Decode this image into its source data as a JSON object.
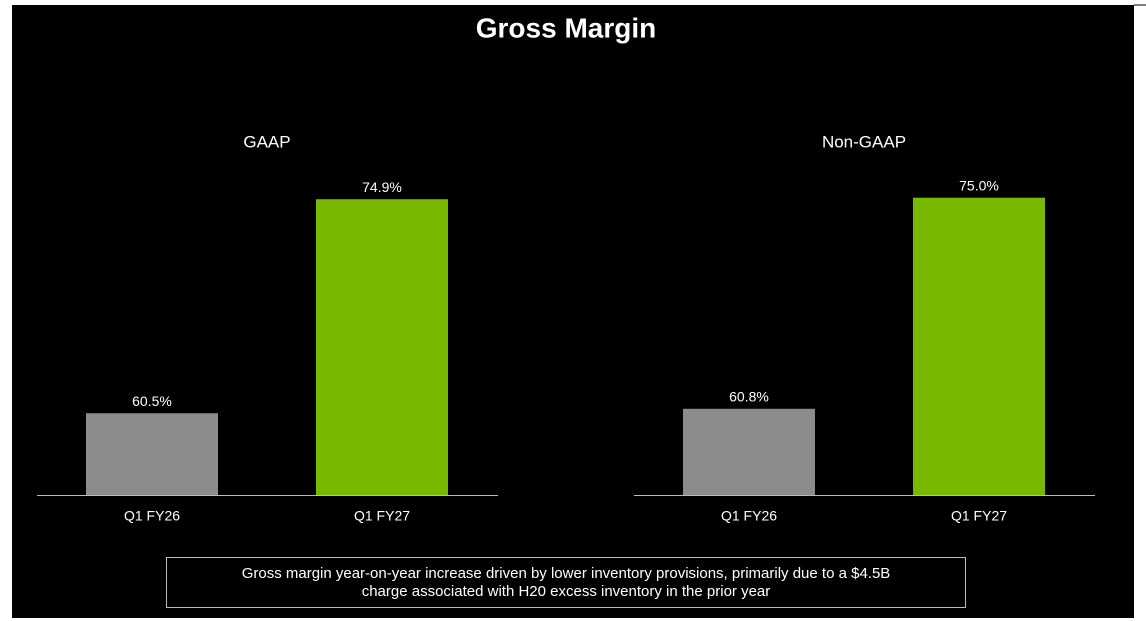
{
  "title": "Gross Margin",
  "chart_data": [
    {
      "type": "bar",
      "title": "GAAP",
      "categories": [
        "Q1 FY26",
        "Q1 FY27"
      ],
      "values": [
        60.5,
        74.9
      ],
      "value_labels": [
        "60.5%",
        "74.9%"
      ],
      "colors": [
        "#8c8c8c",
        "#76b900"
      ],
      "ylim": [
        55,
        77
      ]
    },
    {
      "type": "bar",
      "title": "Non-GAAP",
      "categories": [
        "Q1 FY26",
        "Q1 FY27"
      ],
      "values": [
        60.8,
        75.0
      ],
      "value_labels": [
        "60.8%",
        "75.0%"
      ],
      "colors": [
        "#8c8c8c",
        "#76b900"
      ],
      "ylim": [
        55,
        77
      ]
    }
  ],
  "note": [
    "Gross margin year-on-year increase driven by lower inventory provisions, primarily due to a $4.5B",
    "charge associated with H20 excess inventory in the prior year"
  ]
}
